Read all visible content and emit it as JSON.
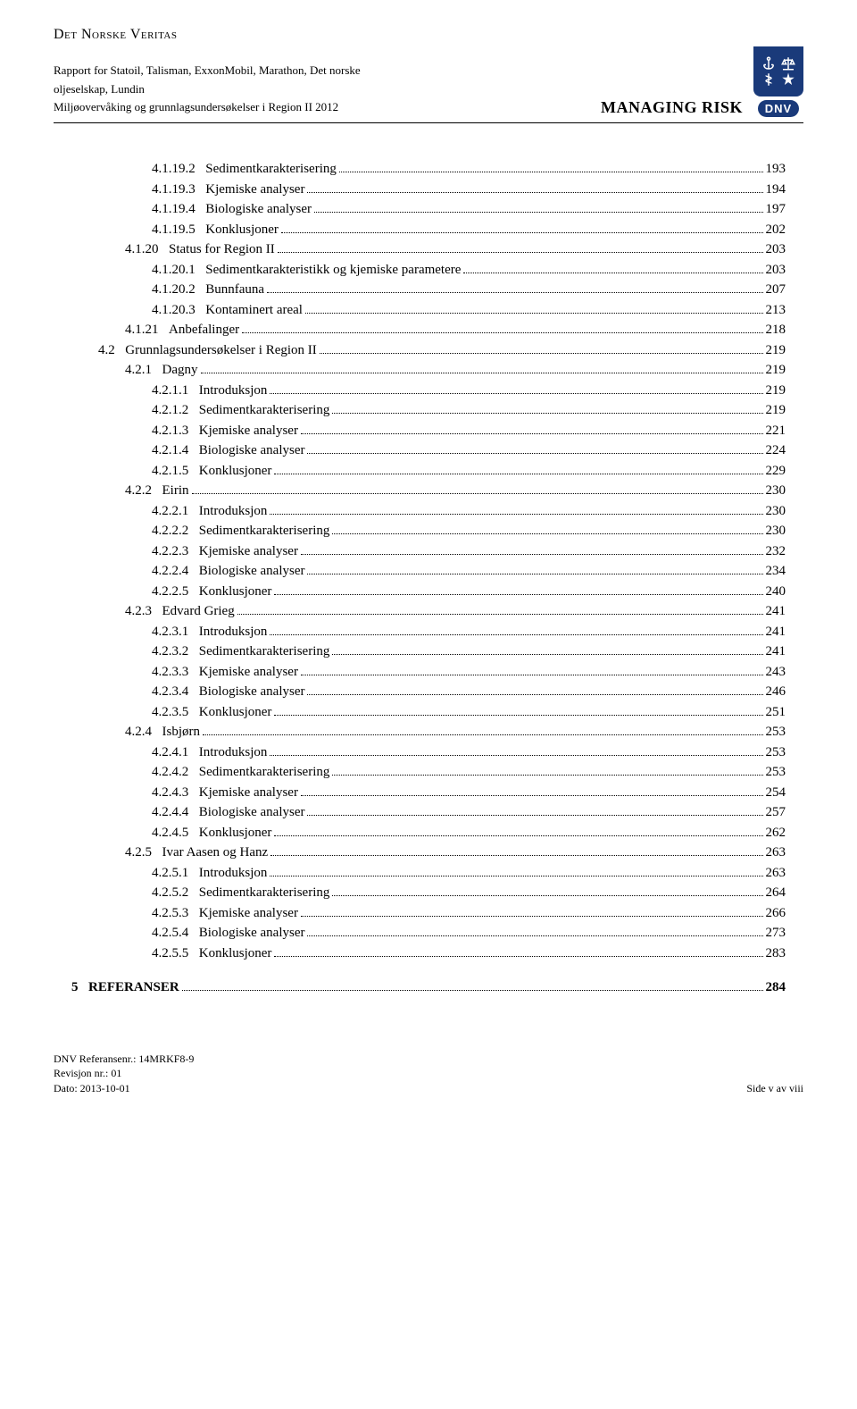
{
  "colors": {
    "text": "#000000",
    "background": "#ffffff",
    "logo_bg": "#1a3a7a",
    "logo_fg": "#ffffff"
  },
  "typography": {
    "body_family": "Times New Roman",
    "body_size_pt": 12,
    "header_top_size_pt": 13,
    "managing_risk_size_pt": 14,
    "footer_size_pt": 9
  },
  "header": {
    "org": "Det Norske Veritas",
    "report_line1": "Rapport for Statoil, Talisman, ExxonMobil, Marathon, Det norske",
    "report_line2": "oljeselskap, Lundin",
    "subtitle": "Miljøovervåking og grunnlagsundersøkelser i Region II 2012",
    "managing_risk": "MANAGING RISK",
    "dnv_tag": "DNV"
  },
  "toc": [
    {
      "lvl": 4,
      "num": "4.1.19.2",
      "label": "Sedimentkarakterisering",
      "page": "193"
    },
    {
      "lvl": 4,
      "num": "4.1.19.3",
      "label": "Kjemiske analyser",
      "page": "194"
    },
    {
      "lvl": 4,
      "num": "4.1.19.4",
      "label": "Biologiske analyser",
      "page": "197"
    },
    {
      "lvl": 4,
      "num": "4.1.19.5",
      "label": "Konklusjoner",
      "page": "202"
    },
    {
      "lvl": 3,
      "num": "4.1.20",
      "label": "Status for Region II",
      "page": "203"
    },
    {
      "lvl": 4,
      "num": "4.1.20.1",
      "label": "Sedimentkarakteristikk og kjemiske parametere",
      "page": "203"
    },
    {
      "lvl": 4,
      "num": "4.1.20.2",
      "label": "Bunnfauna",
      "page": "207"
    },
    {
      "lvl": 4,
      "num": "4.1.20.3",
      "label": "Kontaminert areal",
      "page": "213"
    },
    {
      "lvl": 3,
      "num": "4.1.21",
      "label": "Anbefalinger",
      "page": "218"
    },
    {
      "lvl": 2,
      "num": "4.2",
      "label": "Grunnlagsundersøkelser i Region II",
      "page": "219"
    },
    {
      "lvl": 3,
      "num": "4.2.1",
      "label": "Dagny",
      "page": "219"
    },
    {
      "lvl": 4,
      "num": "4.2.1.1",
      "label": "Introduksjon",
      "page": "219"
    },
    {
      "lvl": 4,
      "num": "4.2.1.2",
      "label": "Sedimentkarakterisering",
      "page": "219"
    },
    {
      "lvl": 4,
      "num": "4.2.1.3",
      "label": "Kjemiske analyser",
      "page": "221"
    },
    {
      "lvl": 4,
      "num": "4.2.1.4",
      "label": "Biologiske analyser",
      "page": "224"
    },
    {
      "lvl": 4,
      "num": "4.2.1.5",
      "label": "Konklusjoner",
      "page": "229"
    },
    {
      "lvl": 3,
      "num": "4.2.2",
      "label": "Eirin",
      "page": "230"
    },
    {
      "lvl": 4,
      "num": "4.2.2.1",
      "label": "Introduksjon",
      "page": "230"
    },
    {
      "lvl": 4,
      "num": "4.2.2.2",
      "label": "Sedimentkarakterisering",
      "page": "230"
    },
    {
      "lvl": 4,
      "num": "4.2.2.3",
      "label": "Kjemiske analyser",
      "page": "232"
    },
    {
      "lvl": 4,
      "num": "4.2.2.4",
      "label": "Biologiske analyser",
      "page": "234"
    },
    {
      "lvl": 4,
      "num": "4.2.2.5",
      "label": "Konklusjoner",
      "page": "240"
    },
    {
      "lvl": 3,
      "num": "4.2.3",
      "label": "Edvard Grieg",
      "page": "241"
    },
    {
      "lvl": 4,
      "num": "4.2.3.1",
      "label": "Introduksjon",
      "page": "241"
    },
    {
      "lvl": 4,
      "num": "4.2.3.2",
      "label": "Sedimentkarakterisering",
      "page": "241"
    },
    {
      "lvl": 4,
      "num": "4.2.3.3",
      "label": "Kjemiske analyser",
      "page": "243"
    },
    {
      "lvl": 4,
      "num": "4.2.3.4",
      "label": "Biologiske analyser",
      "page": "246"
    },
    {
      "lvl": 4,
      "num": "4.2.3.5",
      "label": "Konklusjoner",
      "page": "251"
    },
    {
      "lvl": 3,
      "num": "4.2.4",
      "label": "Isbjørn",
      "page": "253"
    },
    {
      "lvl": 4,
      "num": "4.2.4.1",
      "label": "Introduksjon",
      "page": "253"
    },
    {
      "lvl": 4,
      "num": "4.2.4.2",
      "label": "Sedimentkarakterisering",
      "page": "253"
    },
    {
      "lvl": 4,
      "num": "4.2.4.3",
      "label": "Kjemiske analyser",
      "page": "254"
    },
    {
      "lvl": 4,
      "num": "4.2.4.4",
      "label": "Biologiske analyser",
      "page": "257"
    },
    {
      "lvl": 4,
      "num": "4.2.4.5",
      "label": "Konklusjoner",
      "page": "262"
    },
    {
      "lvl": 3,
      "num": "4.2.5",
      "label": "Ivar Aasen og Hanz",
      "page": "263"
    },
    {
      "lvl": 4,
      "num": "4.2.5.1",
      "label": "Introduksjon",
      "page": "263"
    },
    {
      "lvl": 4,
      "num": "4.2.5.2",
      "label": "Sedimentkarakterisering",
      "page": "264"
    },
    {
      "lvl": 4,
      "num": "4.2.5.3",
      "label": "Kjemiske analyser",
      "page": "266"
    },
    {
      "lvl": 4,
      "num": "4.2.5.4",
      "label": "Biologiske analyser",
      "page": "273"
    },
    {
      "lvl": 4,
      "num": "4.2.5.5",
      "label": "Konklusjoner",
      "page": "283"
    },
    {
      "lvl": 0,
      "num": "5",
      "label": "REFERANSER",
      "page": "284"
    }
  ],
  "footer": {
    "ref_label": "DNV Referansenr.: 14MRKF8-9",
    "rev_label": "Revisjon nr.: 01",
    "date_label": "Dato: 2013-10-01",
    "page_label": "Side v av viii"
  }
}
